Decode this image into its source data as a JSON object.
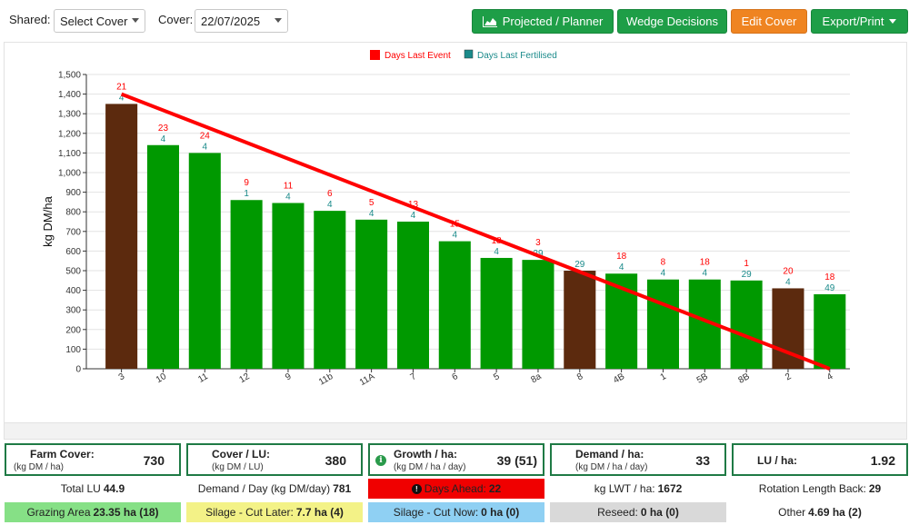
{
  "toolbar": {
    "shared_label": "Shared:",
    "shared_value": "Select Cover",
    "cover_label": "Cover:",
    "cover_value": "22/07/2025",
    "projected_label": "Projected / Planner",
    "wedge_label": "Wedge Decisions",
    "edit_label": "Edit Cover",
    "export_label": "Export/Print"
  },
  "colors": {
    "green": "#1e9e47",
    "orange": "#ef8421",
    "bar_green": "#009900",
    "bar_brown": "#5c2a0e",
    "red": "#ff0000",
    "teal": "#1a8a8a"
  },
  "chart_data": {
    "type": "bar",
    "ylabel": "kg DM/ha",
    "ylim": [
      0,
      1500
    ],
    "ytick_step": 100,
    "grid": true,
    "legend": [
      {
        "name": "Days Last Event",
        "color": "#ff0000"
      },
      {
        "name": "Days Last Fertilised",
        "color": "#1a8a8a"
      }
    ],
    "legend_position": "top-center",
    "categories": [
      "3",
      "10",
      "11",
      "12",
      "9",
      "11b",
      "11A",
      "7",
      "6",
      "5",
      "8a",
      "8",
      "4B",
      "1",
      "5B",
      "8B",
      "2",
      "4"
    ],
    "values": [
      1350,
      1140,
      1100,
      860,
      845,
      805,
      760,
      750,
      650,
      565,
      555,
      500,
      485,
      455,
      455,
      450,
      410,
      380
    ],
    "bar_colors": [
      "brown",
      "green",
      "green",
      "green",
      "green",
      "green",
      "green",
      "green",
      "green",
      "green",
      "green",
      "brown",
      "green",
      "green",
      "green",
      "green",
      "brown",
      "green"
    ],
    "days_last_event": [
      "21",
      "23",
      "24",
      "9",
      "11",
      "6",
      "5",
      "13",
      "15",
      "18",
      "3",
      "",
      "18",
      "8",
      "18",
      "1",
      "20",
      "18"
    ],
    "days_last_fertilised": [
      "4",
      "4",
      "4",
      "1",
      "4",
      "4",
      "4",
      "4",
      "4",
      "4",
      "29",
      "29",
      "4",
      "4",
      "4",
      "29",
      "4",
      "49"
    ],
    "wedge_line": {
      "start": 1400,
      "end": 0
    }
  },
  "stats": {
    "farm_cover": {
      "title": "Farm Cover:",
      "sub": "(kg DM / ha)",
      "value": "730"
    },
    "cover_lu": {
      "title": "Cover / LU:",
      "sub": "(kg DM / LU)",
      "value": "380"
    },
    "growth": {
      "title": "Growth / ha:",
      "sub": "(kg DM / ha / day)",
      "value": "39 (51)",
      "icon": "i"
    },
    "demand": {
      "title": "Demand / ha:",
      "sub": "(kg DM / ha / day)",
      "value": "33"
    },
    "lu_ha": {
      "title": "LU / ha:",
      "value": "1.92"
    }
  },
  "row1": {
    "total_lu_label": "Total LU",
    "total_lu_value": "44.9",
    "demand_day_label": "Demand / Day (kg DM/day)",
    "demand_day_value": "781",
    "days_ahead_label": "Days Ahead:",
    "days_ahead_value": "22",
    "lwt_label": "kg LWT / ha:",
    "lwt_value": "1672",
    "rotation_label": "Rotation Length Back:",
    "rotation_value": "29"
  },
  "row2": {
    "grazing_label": "Grazing Area",
    "grazing_value": "23.35 ha (18)",
    "silage_later_label": "Silage - Cut Later:",
    "silage_later_value": "7.7 ha (4)",
    "silage_now_label": "Silage - Cut Now:",
    "silage_now_value": "0 ha (0)",
    "reseed_label": "Reseed:",
    "reseed_value": "0 ha (0)",
    "other_label": "Other",
    "other_value": "4.69 ha (2)"
  }
}
